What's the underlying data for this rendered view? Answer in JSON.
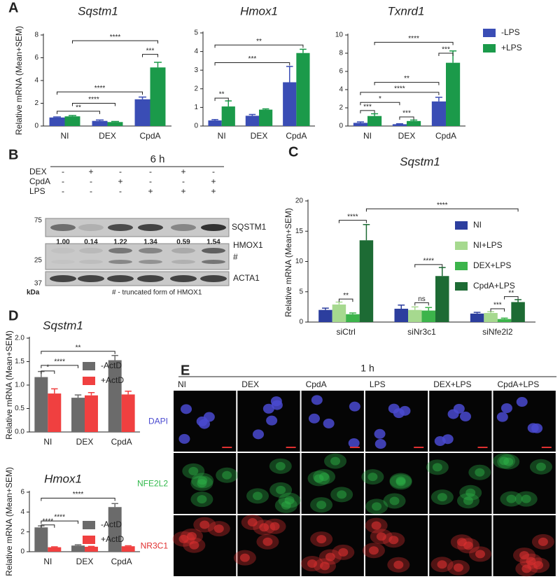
{
  "panels": [
    "A",
    "B",
    "C",
    "D",
    "E"
  ],
  "chart_data": [
    {
      "type": "bar",
      "title": "Sqstm1",
      "ylabel": "Relative mRNA (Mean+SEM)",
      "categories": [
        "NI",
        "DEX",
        "CpdA"
      ],
      "series": [
        {
          "color": "#3a4db5",
          "values": [
            0.75,
            0.45,
            2.35
          ],
          "errors": [
            0.05,
            0.08,
            0.2
          ]
        },
        {
          "color": "#1b9a4a",
          "values": [
            0.85,
            0.35,
            5.15
          ],
          "errors": [
            0.07,
            0.05,
            0.45
          ]
        }
      ],
      "ylim": [
        0,
        8
      ],
      "yticks": [
        0,
        2,
        4,
        6,
        8
      ],
      "annotations": [
        "****",
        "***",
        "****",
        "****",
        "**"
      ]
    },
    {
      "type": "bar",
      "title": "Hmox1",
      "categories": [
        "NI",
        "DEX",
        "CpdA"
      ],
      "series": [
        {
          "color": "#3a4db5",
          "values": [
            0.3,
            0.55,
            2.35
          ],
          "errors": [
            0.05,
            0.07,
            0.85
          ]
        },
        {
          "color": "#1b9a4a",
          "values": [
            1.05,
            0.88,
            3.92
          ],
          "errors": [
            0.3,
            0.04,
            0.2
          ]
        }
      ],
      "ylim": [
        0,
        5
      ],
      "yticks": [
        0,
        1,
        2,
        3,
        4,
        5
      ],
      "annotations": [
        "**",
        "***",
        "**"
      ]
    },
    {
      "type": "bar",
      "title": "Txnrd1",
      "categories": [
        "NI",
        "DEX",
        "CpdA"
      ],
      "legend": "right",
      "series": [
        {
          "name": "-LPS",
          "color": "#3a4db5",
          "values": [
            0.35,
            0.2,
            2.7
          ],
          "errors": [
            0.1,
            0.05,
            0.45
          ]
        },
        {
          "name": "+LPS",
          "color": "#1b9a4a",
          "values": [
            1.1,
            0.55,
            6.95
          ],
          "errors": [
            0.25,
            0.1,
            1.3
          ]
        }
      ],
      "ylim": [
        0,
        10
      ],
      "yticks": [
        0,
        2,
        4,
        6,
        8,
        10
      ],
      "annotations": [
        "****",
        "***",
        "**",
        "****",
        "*",
        "***",
        "***"
      ]
    },
    {
      "type": "bar",
      "title": "Sqstm1",
      "ylabel": "Relative mRNA (Mean+SEM)",
      "categories": [
        "siCtrl",
        "siNr3c1",
        "siNfe2l2"
      ],
      "legend": "upper right",
      "series": [
        {
          "name": "NI",
          "color": "#2c3e9e",
          "values": [
            2.0,
            2.2,
            1.4
          ],
          "errors": [
            0.3,
            0.6,
            0.2
          ]
        },
        {
          "name": "NI+LPS",
          "color": "#a6d98f",
          "values": [
            2.9,
            2.0,
            1.5
          ],
          "errors": [
            0.4,
            0.5,
            0.2
          ]
        },
        {
          "name": "DEX+LPS",
          "color": "#3cb44b",
          "values": [
            1.3,
            1.9,
            0.5
          ],
          "errors": [
            0.2,
            0.5,
            0.15
          ]
        },
        {
          "name": "CpdA+LPS",
          "color": "#1d6b34",
          "values": [
            13.5,
            7.6,
            3.3
          ],
          "errors": [
            2.6,
            1.4,
            0.4
          ]
        }
      ],
      "ylim": [
        0,
        20
      ],
      "yticks": [
        0,
        5,
        10,
        15,
        20
      ],
      "annotations": [
        "****",
        "****",
        "**",
        "****",
        "ns",
        "***",
        "**"
      ]
    },
    {
      "type": "bar",
      "title": "Sqstm1",
      "ylabel": "Relative mRNA (Mean+SEM)",
      "categories": [
        "NI",
        "DEX",
        "CpdA"
      ],
      "legend": "upper right",
      "series": [
        {
          "name": "-ActD",
          "color": "#6b6b6b",
          "values": [
            1.17,
            0.73,
            1.53
          ],
          "errors": [
            0.12,
            0.06,
            0.1
          ]
        },
        {
          "name": "+ActD",
          "color": "#f04040",
          "values": [
            0.82,
            0.78,
            0.8
          ],
          "errors": [
            0.1,
            0.06,
            0.07
          ]
        }
      ],
      "ylim": [
        0,
        2
      ],
      "yticks": [
        {
          "value": 0,
          "label": "0.0"
        },
        0.5,
        {
          "value": 1,
          "label": "1.0"
        },
        1.5,
        {
          "value": 2,
          "label": "2.0"
        }
      ],
      "annotations": [
        "**",
        "****",
        "*"
      ]
    },
    {
      "type": "bar",
      "title": "Hmox1",
      "ylabel": "Relative mRNA (Mean+SEM)",
      "categories": [
        "NI",
        "DEX",
        "CpdA"
      ],
      "legend": "upper right",
      "series": [
        {
          "name": "-ActD",
          "color": "#6b6b6b",
          "values": [
            2.45,
            0.62,
            4.5
          ],
          "errors": [
            0.15,
            0.08,
            0.35
          ]
        },
        {
          "name": "+ActD",
          "color": "#f04040",
          "values": [
            0.45,
            0.5,
            0.55
          ],
          "errors": [
            0.04,
            0.04,
            0.05
          ]
        }
      ],
      "ylim": [
        0,
        6
      ],
      "yticks": [
        0,
        2,
        4,
        6
      ],
      "annotations": [
        "****",
        "****",
        "****"
      ]
    }
  ],
  "blot": {
    "title": "6 h",
    "conditions": [
      {
        "name": "DEX",
        "signs": [
          "-",
          "+",
          "-",
          "-",
          "+",
          "-"
        ]
      },
      {
        "name": "CpdA",
        "signs": [
          "-",
          "-",
          "+",
          "-",
          "-",
          "+"
        ]
      },
      {
        "name": "LPS",
        "signs": [
          "-",
          "-",
          "-",
          "+",
          "+",
          "+"
        ]
      }
    ],
    "bands": [
      "SQSTM1",
      "HMOX1",
      "#",
      "ACTA1"
    ],
    "quantification": [
      "1.00",
      "0.14",
      "1.22",
      "1.34",
      "0.59",
      "1.54"
    ],
    "markers": [
      "75",
      "25",
      "37"
    ],
    "marker_unit": "kDa",
    "footnote": "# - truncated form of HMOX1"
  },
  "microscopy": {
    "title": "1 h",
    "columns": [
      "NI",
      "DEX",
      "CpdA",
      "LPS",
      "DEX+LPS",
      "CpdA+LPS"
    ],
    "channels": [
      {
        "name": "DAPI",
        "color": "#4a4ad0"
      },
      {
        "name": "NFE2L2",
        "color": "#2fb84a"
      },
      {
        "name": "NR3C1",
        "color": "#e03030"
      }
    ]
  }
}
